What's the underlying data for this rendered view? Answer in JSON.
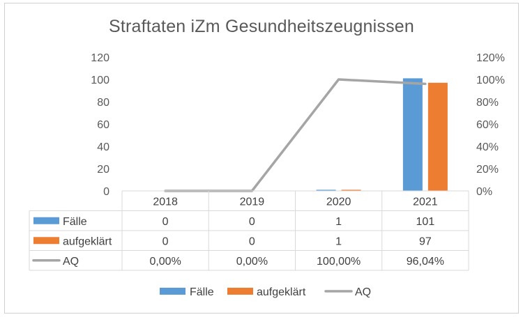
{
  "chart_data": {
    "type": "bar",
    "title": "Straftaten iZm Gesundheitszeugnissen",
    "categories": [
      "2018",
      "2019",
      "2020",
      "2021"
    ],
    "series": [
      {
        "name": "Fälle",
        "kind": "bar",
        "axis": "left",
        "color": "#5b9bd5",
        "values": [
          0,
          0,
          1,
          101
        ],
        "labels": [
          "0",
          "0",
          "1",
          "101"
        ]
      },
      {
        "name": "aufgeklärt",
        "kind": "bar",
        "axis": "left",
        "color": "#ed7d31",
        "values": [
          0,
          0,
          1,
          97
        ],
        "labels": [
          "0",
          "0",
          "1",
          "97"
        ]
      },
      {
        "name": "AQ",
        "kind": "line",
        "axis": "right",
        "color": "#a5a5a5",
        "values": [
          0,
          0,
          100,
          96.04
        ],
        "labels": [
          "0,00%",
          "0,00%",
          "100,00%",
          "96,04%"
        ]
      }
    ],
    "y_left": {
      "min": 0,
      "max": 120,
      "ticks": [
        "0",
        "20",
        "40",
        "60",
        "80",
        "100",
        "120"
      ]
    },
    "y_right": {
      "min": 0,
      "max": 120,
      "ticks": [
        "0%",
        "20%",
        "40%",
        "60%",
        "80%",
        "100%",
        "120%"
      ]
    },
    "grid": false,
    "legend_position": "bottom",
    "data_table": true
  }
}
